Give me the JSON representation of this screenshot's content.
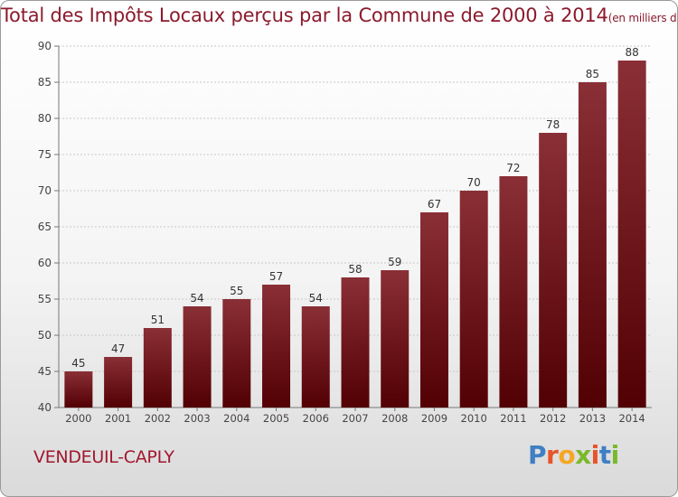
{
  "chart_data": {
    "type": "bar",
    "title": "Total des Impôts Locaux perçus par la Commune de 2000 à 2014",
    "subtitle": "(en milliers d'€)",
    "categories": [
      "2000",
      "2001",
      "2002",
      "2003",
      "2004",
      "2005",
      "2006",
      "2007",
      "2008",
      "2009",
      "2010",
      "2011",
      "2012",
      "2013",
      "2014"
    ],
    "values": [
      45,
      47,
      51,
      54,
      55,
      57,
      54,
      58,
      59,
      67,
      70,
      72,
      78,
      85,
      88
    ],
    "yticks": [
      40,
      45,
      50,
      55,
      60,
      65,
      70,
      75,
      80,
      85,
      90
    ],
    "ylim": [
      40,
      90
    ],
    "xlabel": "",
    "ylabel": "",
    "grid": true,
    "bar_color": "#6b0f15"
  },
  "footer": {
    "commune": "VENDEUIL-CAPLY",
    "logo_letters": [
      "P",
      "r",
      "o",
      "x",
      "i",
      "t",
      "i"
    ],
    "logo_colors": [
      "#3f7fc3",
      "#e8542a",
      "#f5a623",
      "#7ab929",
      "#e8542a",
      "#3f7fc3",
      "#7ab929"
    ]
  }
}
